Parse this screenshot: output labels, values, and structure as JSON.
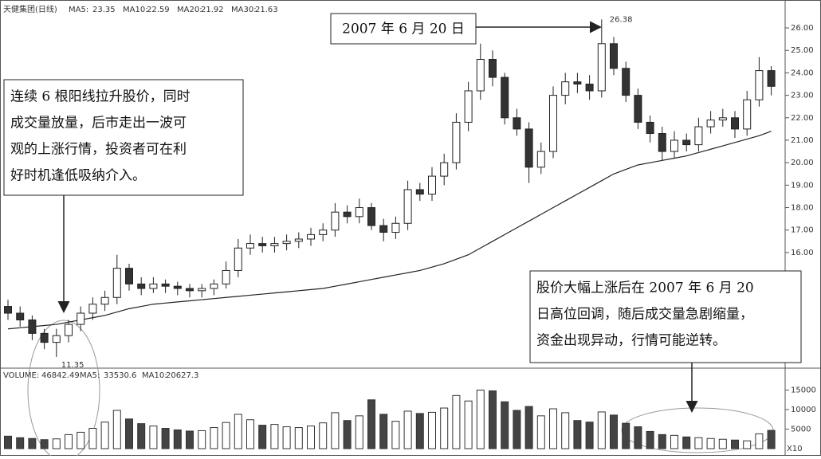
{
  "chart_data": {
    "type": "candlestick",
    "title": "天健集团(日线)",
    "ma_legend": [
      {
        "name": "MA5:",
        "value": 23.35
      },
      {
        "name": "MA10:",
        "value": 22.59
      },
      {
        "name": "MA20:",
        "value": 21.92
      },
      {
        "name": "MA30:",
        "value": 21.63
      }
    ],
    "open": [
      13.6,
      13.3,
      13.0,
      12.4,
      12.0,
      12.3,
      12.8,
      13.3,
      13.7,
      14.0,
      15.3,
      14.6,
      14.4,
      14.6,
      14.5,
      14.4,
      14.3,
      14.4,
      14.6,
      15.2,
      16.2,
      16.4,
      16.3,
      16.4,
      16.5,
      16.6,
      16.8,
      17.0,
      17.8,
      17.6,
      18.0,
      17.2,
      16.9,
      17.3,
      18.8,
      18.6,
      19.4,
      20.0,
      21.8,
      23.2,
      24.6,
      23.8,
      22.0,
      21.5,
      19.8,
      20.5,
      23.0,
      23.6,
      23.5,
      23.2,
      25.3,
      24.2,
      23.0,
      21.8,
      21.3,
      20.5,
      21.0,
      20.8,
      21.6,
      21.9,
      22.0,
      21.5,
      22.8,
      24.1
    ],
    "close": [
      13.3,
      13.0,
      12.4,
      12.0,
      12.3,
      12.8,
      13.3,
      13.7,
      14.0,
      15.3,
      14.6,
      14.4,
      14.6,
      14.5,
      14.4,
      14.3,
      14.4,
      14.6,
      15.2,
      16.2,
      16.4,
      16.3,
      16.4,
      16.5,
      16.6,
      16.8,
      17.0,
      17.8,
      17.6,
      18.0,
      17.2,
      16.9,
      17.3,
      18.8,
      18.6,
      19.4,
      20.0,
      21.8,
      23.2,
      24.6,
      23.8,
      22.0,
      21.5,
      19.8,
      20.5,
      23.0,
      23.6,
      23.5,
      23.2,
      25.3,
      24.2,
      23.0,
      21.8,
      21.3,
      20.5,
      21.0,
      20.8,
      21.6,
      21.9,
      22.0,
      21.5,
      22.8,
      24.1,
      23.4
    ],
    "high": [
      13.9,
      13.6,
      13.2,
      12.6,
      12.6,
      13.0,
      13.6,
      14.0,
      14.3,
      15.9,
      15.5,
      14.9,
      14.9,
      14.8,
      14.7,
      14.6,
      14.6,
      14.8,
      15.6,
      16.6,
      16.8,
      16.7,
      16.7,
      16.8,
      16.9,
      17.1,
      17.3,
      18.2,
      18.1,
      18.4,
      18.2,
      17.5,
      17.6,
      19.2,
      19.1,
      19.8,
      20.4,
      22.2,
      23.6,
      25.3,
      25.0,
      24.0,
      22.4,
      21.8,
      20.9,
      23.4,
      24.0,
      24.0,
      23.9,
      26.38,
      25.6,
      24.5,
      23.3,
      22.1,
      21.6,
      21.4,
      21.3,
      22.0,
      22.3,
      22.4,
      22.3,
      23.2,
      24.7,
      24.3
    ],
    "low": [
      13.0,
      12.7,
      12.1,
      11.7,
      11.35,
      12.0,
      12.5,
      13.0,
      13.4,
      13.7,
      14.3,
      14.1,
      14.2,
      14.2,
      14.1,
      14.0,
      14.0,
      14.1,
      14.4,
      14.9,
      15.9,
      16.0,
      16.0,
      16.1,
      16.2,
      16.3,
      16.5,
      16.7,
      17.3,
      17.3,
      17.0,
      16.5,
      16.6,
      17.0,
      18.3,
      18.3,
      19.0,
      19.7,
      21.4,
      22.8,
      23.4,
      21.7,
      21.2,
      19.1,
      19.5,
      20.2,
      22.6,
      23.1,
      22.8,
      22.9,
      23.9,
      22.7,
      21.5,
      20.9,
      20.1,
      20.2,
      20.5,
      20.5,
      21.3,
      21.6,
      21.1,
      21.2,
      22.5,
      23.0
    ],
    "ma_line": [
      12.6,
      12.65,
      12.7,
      12.75,
      12.8,
      12.9,
      13.0,
      13.1,
      13.2,
      13.35,
      13.5,
      13.6,
      13.7,
      13.75,
      13.8,
      13.85,
      13.9,
      13.95,
      14.0,
      14.05,
      14.1,
      14.15,
      14.2,
      14.25,
      14.3,
      14.35,
      14.4,
      14.5,
      14.6,
      14.7,
      14.8,
      14.9,
      15.0,
      15.1,
      15.2,
      15.35,
      15.5,
      15.7,
      15.9,
      16.2,
      16.5,
      16.8,
      17.1,
      17.4,
      17.7,
      18.0,
      18.3,
      18.6,
      18.9,
      19.2,
      19.5,
      19.7,
      19.9,
      20.0,
      20.1,
      20.2,
      20.3,
      20.45,
      20.6,
      20.75,
      20.9,
      21.05,
      21.2,
      21.4
    ],
    "volume": [
      3200,
      2800,
      2600,
      2300,
      2500,
      3600,
      4200,
      5200,
      6800,
      9800,
      7600,
      6400,
      5800,
      5200,
      4800,
      4500,
      4600,
      5400,
      6700,
      8800,
      7400,
      6000,
      6200,
      5600,
      5400,
      5800,
      6600,
      9200,
      7200,
      8400,
      12500,
      8800,
      7000,
      9600,
      9000,
      9300,
      10400,
      13600,
      12200,
      15000,
      14800,
      12000,
      9800,
      10800,
      8400,
      10200,
      9200,
      7200,
      6800,
      9400,
      8600,
      6500,
      5600,
      4400,
      3600,
      3400,
      3000,
      2800,
      2600,
      2400,
      2200,
      2000,
      3800,
      4684
    ],
    "ylim": [
      11.1,
      26.96
    ],
    "yticks": [
      {
        "value": 16,
        "label": "16.00"
      },
      {
        "value": 17,
        "label": "17.00"
      },
      {
        "value": 18,
        "label": "18.00"
      },
      {
        "value": 19,
        "label": "19.00"
      },
      {
        "value": 20,
        "label": "20.00"
      },
      {
        "value": 21,
        "label": "21.00"
      },
      {
        "value": 22,
        "label": "22.00"
      },
      {
        "value": 23,
        "label": "23.00"
      },
      {
        "value": 24,
        "label": "24.00"
      },
      {
        "value": 25,
        "label": "25.00"
      },
      {
        "value": 26,
        "label": "26.00"
      }
    ],
    "volume_label": "VOLUME:",
    "volume_value": 46842.49,
    "volume_ma": [
      {
        "name": "MA5:",
        "value": 33530.6
      },
      {
        "name": "MA10:",
        "value": 20627.3
      }
    ],
    "vlim": [
      0,
      20000
    ],
    "vticks": [
      5000,
      10000,
      15000
    ],
    "volume_unit": "X10",
    "peak_label": {
      "value": 26.38,
      "label": "26.38"
    },
    "low_label": {
      "value": 11.35,
      "label": "11.35"
    },
    "date_box": "2007 年 6 月 20 日",
    "annotations": [
      [
        "连续 6 根阳线拉升股价，同时",
        "成交量放量，后市走出一波可",
        "观的上涨行情，投资者可在利",
        "好时机逢低吸纳介入。"
      ],
      [
        "股价大幅上涨后在 2007 年 6 月 20",
        "日高位回调，随后成交量急剧缩量，",
        "资金出现异动，行情可能逆转。"
      ]
    ]
  }
}
